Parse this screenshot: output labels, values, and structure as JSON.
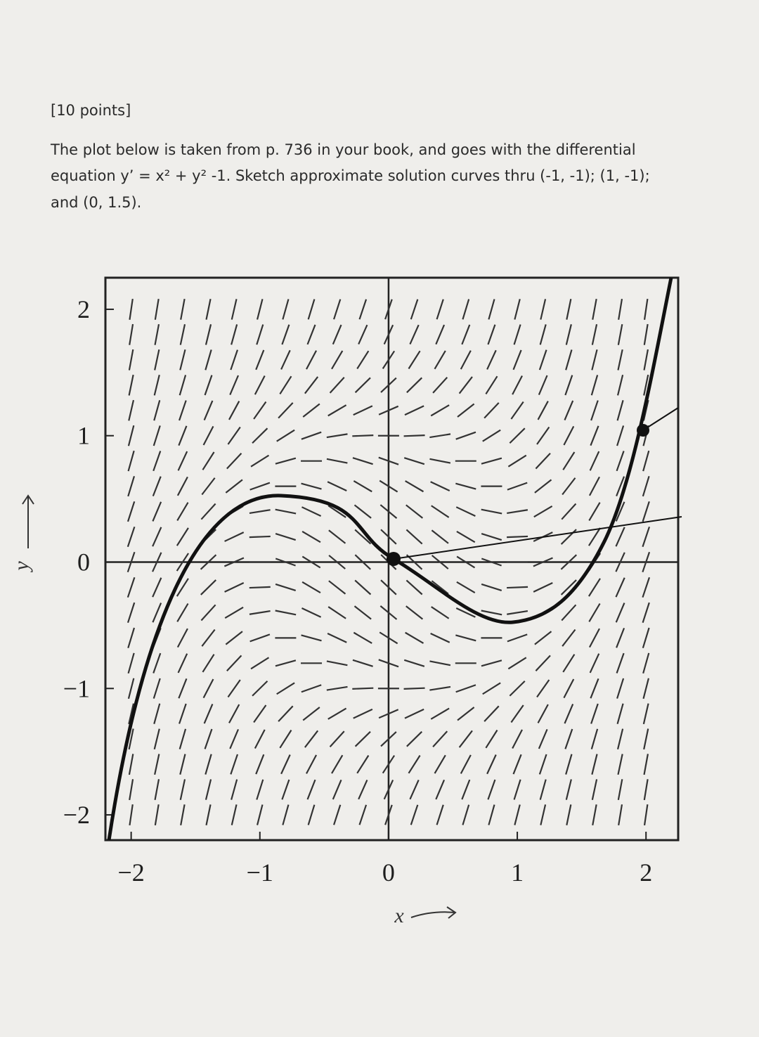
{
  "header": {
    "points": "[10 points]"
  },
  "problem": {
    "lines": [
      "The plot below is taken from p. 736 in your book, and goes with the differential",
      "equation y’ = x² + y² -1.  Sketch approximate solution curves thru (-1, -1); (1, -1);",
      "and (0, 1.5)."
    ]
  },
  "figure": {
    "xlim": [
      -2.2,
      2.25
    ],
    "ylim": [
      -2.2,
      2.25
    ],
    "xticks": [
      {
        "value": -2,
        "label": "−2"
      },
      {
        "value": -1,
        "label": "−1"
      },
      0,
      1,
      2
    ],
    "yticks": [
      {
        "value": -2,
        "label": "−2"
      },
      {
        "value": -1,
        "label": "−1"
      },
      0,
      1,
      2
    ],
    "x_label": "x",
    "y_label": "y"
  }
}
